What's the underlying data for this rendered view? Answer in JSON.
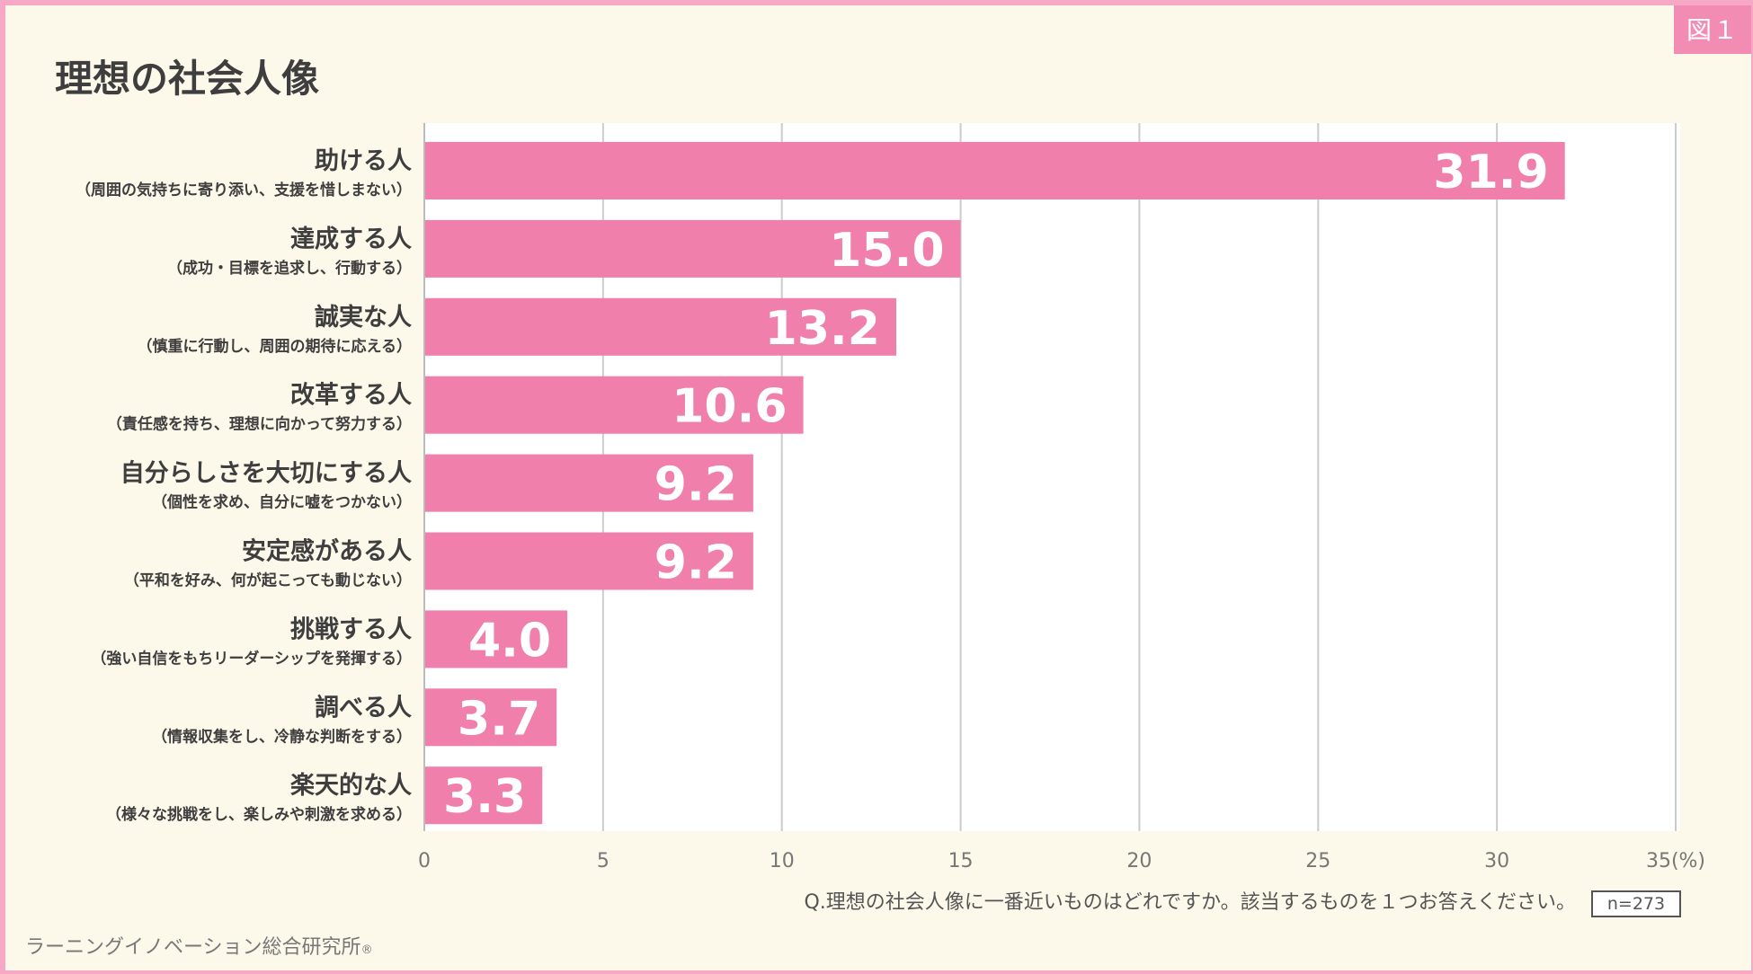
{
  "figure_label": "図１",
  "title": "理想の社会人像",
  "question": "Q.理想の社会人像に一番近いものはどれですか。該当するものを１つお答えください。",
  "sample_size": "n=273",
  "footer": "ラーニングイノベーション総合研究所",
  "footer_mark": "®",
  "colors": {
    "bar": "#f07fab",
    "background": "#fcf8ea",
    "border": "#f7a8c4",
    "grid": "#cccccc"
  },
  "chart_data": {
    "type": "bar",
    "orientation": "horizontal",
    "unit": "(%)",
    "xlim": [
      0,
      35
    ],
    "xticks": [
      "0",
      "5",
      "10",
      "15",
      "20",
      "25",
      "30",
      "35"
    ],
    "grid": true,
    "categories": [
      {
        "label": "助ける人",
        "sublabel": "（周囲の気持ちに寄り添い、支援を惜しまない）",
        "value": 31.9,
        "value_label": "31.9"
      },
      {
        "label": "達成する人",
        "sublabel": "（成功・目標を追求し、行動する）",
        "value": 15.0,
        "value_label": "15.0"
      },
      {
        "label": "誠実な人",
        "sublabel": "（慎重に行動し、周囲の期待に応える）",
        "value": 13.2,
        "value_label": "13.2"
      },
      {
        "label": "改革する人",
        "sublabel": "（責任感を持ち、理想に向かって努力する）",
        "value": 10.6,
        "value_label": "10.6"
      },
      {
        "label": "自分らしさを大切にする人",
        "sublabel": "（個性を求め、自分に嘘をつかない）",
        "value": 9.2,
        "value_label": "9.2"
      },
      {
        "label": "安定感がある人",
        "sublabel": "（平和を好み、何が起こっても動じない）",
        "value": 9.2,
        "value_label": "9.2"
      },
      {
        "label": "挑戦する人",
        "sublabel": "（強い自信をもちリーダーシップを発揮する）",
        "value": 4.0,
        "value_label": "4.0"
      },
      {
        "label": "調べる人",
        "sublabel": "（情報収集をし、冷静な判断をする）",
        "value": 3.7,
        "value_label": "3.7"
      },
      {
        "label": "楽天的な人",
        "sublabel": "（様々な挑戦をし、楽しみや刺激を求める）",
        "value": 3.3,
        "value_label": "3.3"
      }
    ]
  }
}
